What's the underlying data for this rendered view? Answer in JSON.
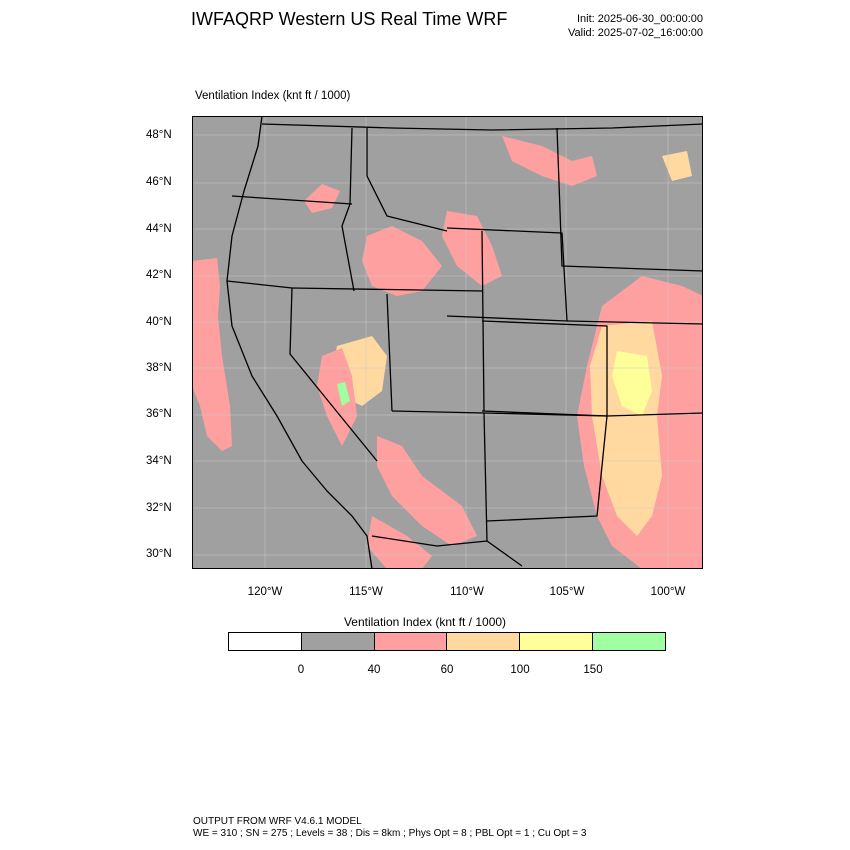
{
  "header": {
    "title": "IWFAQRP Western US Real Time WRF",
    "init": "Init: 2025-06-30_00:00:00",
    "valid": "Valid: 2025-07-02_16:00:00"
  },
  "map_panel": {
    "variable_label": "Ventilation Index   (knt ft / 1000)",
    "lat_labels": [
      "48°N",
      "46°N",
      "44°N",
      "42°N",
      "40°N",
      "38°N",
      "36°N",
      "34°N",
      "32°N",
      "30°N"
    ],
    "lon_labels": [
      "120°W",
      "115°W",
      "110°W",
      "105°W",
      "100°W"
    ],
    "background_color": "#a0a0a0",
    "ocean_color": "#a0a0a0",
    "boundary_color": "#000000",
    "region_colors": {
      "low": "#ffa0a0",
      "moderate": "#ffd9a0",
      "high": "#ffff9a",
      "very_high": "#a0ffa0"
    }
  },
  "colorbar": {
    "title": "Ventilation Index   (knt ft / 1000)",
    "colors": [
      "#ffffff",
      "#a0a0a0",
      "#ffa0a0",
      "#ffd9a0",
      "#ffff9a",
      "#a0ffa0"
    ],
    "ticks": [
      "0",
      "40",
      "60",
      "100",
      "150"
    ]
  },
  "footer": {
    "line1": "OUTPUT FROM WRF V4.6.1 MODEL",
    "line2": "WE = 310 ; SN = 275 ; Levels = 38 ; Dis = 8km ; Phys Opt = 8 ; PBL Opt = 1 ; Cu Opt = 3"
  }
}
